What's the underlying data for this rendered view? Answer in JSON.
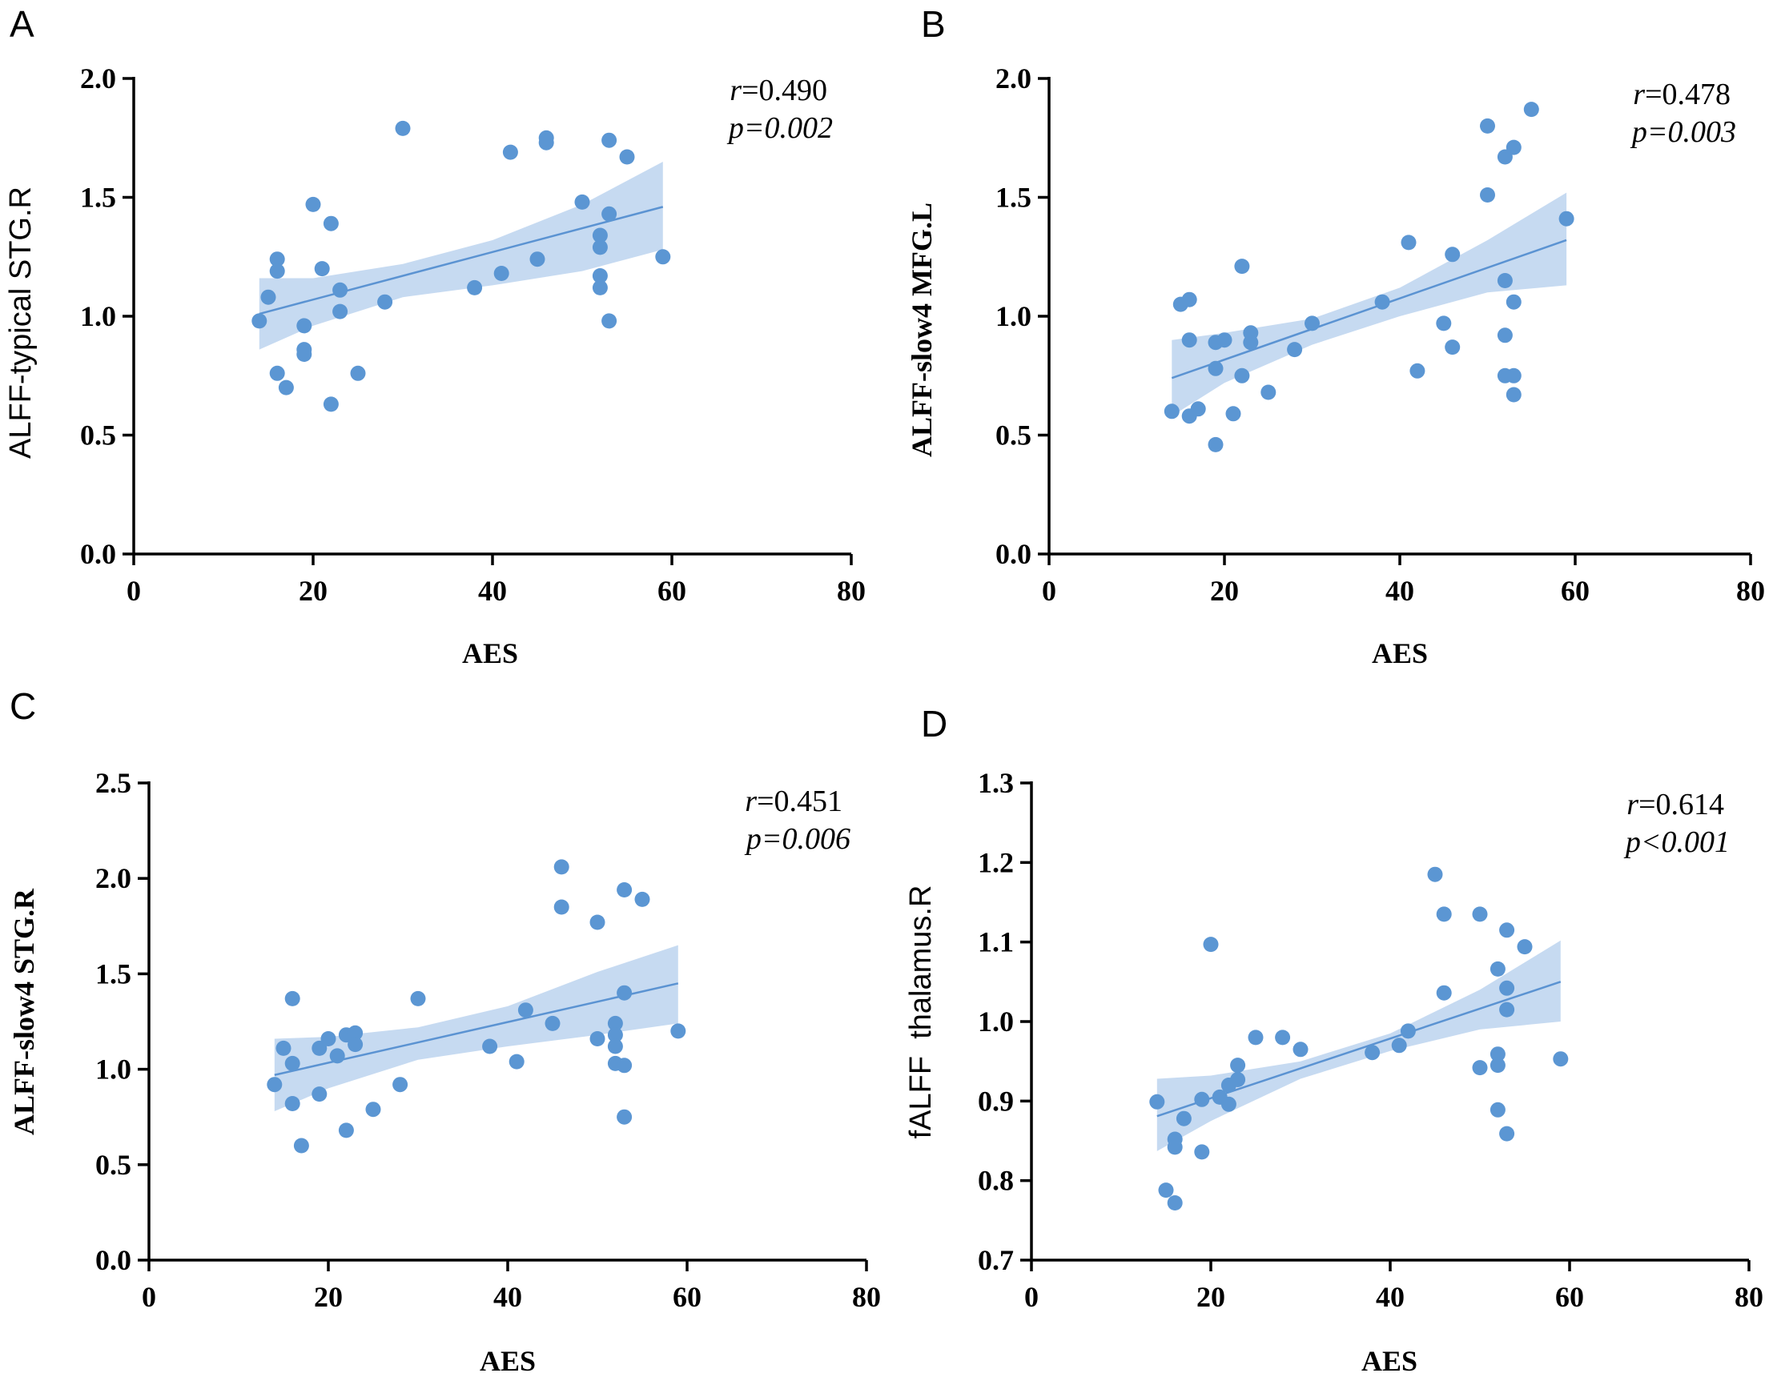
{
  "colors": {
    "points": "#5b96d3",
    "band": "#bcd4ef",
    "line": "#5b93d2",
    "axis": "#000000"
  },
  "chart_data": [
    {
      "type": "scatter",
      "panel": "A",
      "xlabel": "AES",
      "ylabel": "ALFF-typical STG.R",
      "xlim": [
        0,
        80
      ],
      "ylim": [
        0,
        2.0
      ],
      "xticks": [
        "0",
        "20",
        "40",
        "60",
        "80"
      ],
      "yticks": [
        "0.0",
        "0.5",
        "1.0",
        "1.5",
        "2.0"
      ],
      "stats": {
        "r_sym": "r",
        "r_val": "=0.490",
        "p": "p=0.002"
      },
      "fit": {
        "x0": 14,
        "y0": 1.01,
        "x1": 59,
        "y1": 1.46
      },
      "band": {
        "xs": [
          14,
          20,
          30,
          40,
          50,
          59
        ],
        "lower": [
          0.86,
          0.96,
          1.08,
          1.13,
          1.19,
          1.28
        ],
        "upper": [
          1.16,
          1.16,
          1.22,
          1.32,
          1.47,
          1.65
        ]
      },
      "points": [
        [
          14,
          0.98
        ],
        [
          15,
          1.08
        ],
        [
          16,
          1.24
        ],
        [
          16,
          1.19
        ],
        [
          16,
          0.76
        ],
        [
          17,
          0.7
        ],
        [
          19,
          0.96
        ],
        [
          19,
          0.86
        ],
        [
          19,
          0.84
        ],
        [
          20,
          1.47
        ],
        [
          21,
          1.2
        ],
        [
          22,
          1.39
        ],
        [
          22,
          0.63
        ],
        [
          23,
          1.11
        ],
        [
          23,
          1.02
        ],
        [
          25,
          0.76
        ],
        [
          28,
          1.06
        ],
        [
          30,
          1.79
        ],
        [
          38,
          1.12
        ],
        [
          41,
          1.18
        ],
        [
          42,
          1.69
        ],
        [
          45,
          1.24
        ],
        [
          46,
          1.75
        ],
        [
          46,
          1.73
        ],
        [
          50,
          1.48
        ],
        [
          52,
          1.34
        ],
        [
          52,
          1.29
        ],
        [
          52,
          1.17
        ],
        [
          52,
          1.12
        ],
        [
          53,
          1.74
        ],
        [
          53,
          1.43
        ],
        [
          53,
          0.98
        ],
        [
          55,
          1.67
        ],
        [
          59,
          1.25
        ]
      ]
    },
    {
      "type": "scatter",
      "panel": "B",
      "xlabel": "AES",
      "ylabel": "ALFF-slow4 MFG.L",
      "xlim": [
        0,
        80
      ],
      "ylim": [
        0,
        2.0
      ],
      "xticks": [
        "0",
        "20",
        "40",
        "60",
        "80"
      ],
      "yticks": [
        "0.0",
        "0.5",
        "1.0",
        "1.5",
        "2.0"
      ],
      "stats": {
        "r_sym": "r",
        "r_val": "=0.478",
        "p": "p=0.003"
      },
      "fit": {
        "x0": 14,
        "y0": 0.74,
        "x1": 59,
        "y1": 1.32
      },
      "band": {
        "xs": [
          14,
          20,
          30,
          40,
          50,
          59
        ],
        "lower": [
          0.58,
          0.72,
          0.88,
          1.0,
          1.1,
          1.13
        ],
        "upper": [
          0.9,
          0.93,
          0.99,
          1.12,
          1.32,
          1.52
        ]
      },
      "points": [
        [
          14,
          0.6
        ],
        [
          15,
          1.05
        ],
        [
          16,
          1.07
        ],
        [
          16,
          0.9
        ],
        [
          16,
          0.58
        ],
        [
          17,
          0.61
        ],
        [
          19,
          0.89
        ],
        [
          19,
          0.78
        ],
        [
          19,
          0.46
        ],
        [
          20,
          0.9
        ],
        [
          21,
          0.59
        ],
        [
          22,
          1.21
        ],
        [
          22,
          0.75
        ],
        [
          23,
          0.93
        ],
        [
          23,
          0.89
        ],
        [
          25,
          0.68
        ],
        [
          28,
          0.86
        ],
        [
          30,
          0.97
        ],
        [
          38,
          1.06
        ],
        [
          41,
          1.31
        ],
        [
          42,
          0.77
        ],
        [
          45,
          0.97
        ],
        [
          46,
          1.26
        ],
        [
          46,
          0.87
        ],
        [
          50,
          1.8
        ],
        [
          50,
          1.51
        ],
        [
          52,
          1.67
        ],
        [
          52,
          1.15
        ],
        [
          52,
          0.92
        ],
        [
          52,
          0.75
        ],
        [
          53,
          1.71
        ],
        [
          53,
          1.06
        ],
        [
          53,
          0.75
        ],
        [
          53,
          0.67
        ],
        [
          55,
          1.87
        ],
        [
          59,
          1.41
        ]
      ]
    },
    {
      "type": "scatter",
      "panel": "C",
      "xlabel": "AES",
      "ylabel": "ALFF-slow4 STG.R",
      "xlim": [
        0,
        80
      ],
      "ylim": [
        0,
        2.5
      ],
      "xticks": [
        "0",
        "20",
        "40",
        "60",
        "80"
      ],
      "yticks": [
        "0.0",
        "0.5",
        "1.0",
        "1.5",
        "2.0",
        "2.5"
      ],
      "stats": {
        "r_sym": "r",
        "r_val": "=0.451",
        "p": "p=0.006"
      },
      "fit": {
        "x0": 14,
        "y0": 0.97,
        "x1": 59,
        "y1": 1.45
      },
      "band": {
        "xs": [
          14,
          20,
          30,
          40,
          50,
          59
        ],
        "lower": [
          0.78,
          0.9,
          1.05,
          1.12,
          1.18,
          1.24
        ],
        "upper": [
          1.16,
          1.17,
          1.22,
          1.33,
          1.51,
          1.65
        ]
      },
      "points": [
        [
          14,
          0.92
        ],
        [
          15,
          1.11
        ],
        [
          16,
          1.37
        ],
        [
          16,
          1.03
        ],
        [
          16,
          0.82
        ],
        [
          17,
          0.6
        ],
        [
          19,
          1.11
        ],
        [
          19,
          0.87
        ],
        [
          20,
          1.16
        ],
        [
          21,
          1.07
        ],
        [
          22,
          1.18
        ],
        [
          22,
          0.68
        ],
        [
          23,
          1.19
        ],
        [
          23,
          1.13
        ],
        [
          25,
          0.79
        ],
        [
          28,
          0.92
        ],
        [
          30,
          1.37
        ],
        [
          38,
          1.12
        ],
        [
          41,
          1.04
        ],
        [
          42,
          1.31
        ],
        [
          45,
          1.24
        ],
        [
          46,
          2.06
        ],
        [
          46,
          1.85
        ],
        [
          50,
          1.77
        ],
        [
          50,
          1.16
        ],
        [
          52,
          1.24
        ],
        [
          52,
          1.18
        ],
        [
          52,
          1.12
        ],
        [
          52,
          1.03
        ],
        [
          53,
          1.94
        ],
        [
          53,
          1.4
        ],
        [
          53,
          1.02
        ],
        [
          53,
          0.75
        ],
        [
          55,
          1.89
        ],
        [
          59,
          1.2
        ]
      ]
    },
    {
      "type": "scatter",
      "panel": "D",
      "xlabel": "AES",
      "ylabel": "fALFF  thalamus.R",
      "xlim": [
        0,
        80
      ],
      "ylim": [
        0.7,
        1.3
      ],
      "xticks": [
        "0",
        "20",
        "40",
        "60",
        "80"
      ],
      "yticks": [
        "0.7",
        "0.8",
        "0.9",
        "1.0",
        "1.1",
        "1.2",
        "1.3"
      ],
      "stats": {
        "r_sym": "r",
        "r_val": "=0.614",
        "p": "p<0.001"
      },
      "fit": {
        "x0": 14,
        "y0": 0.881,
        "x1": 59,
        "y1": 1.05
      },
      "band": {
        "xs": [
          14,
          20,
          30,
          40,
          50,
          59
        ],
        "lower": [
          0.837,
          0.875,
          0.928,
          0.963,
          0.99,
          1.0
        ],
        "upper": [
          0.928,
          0.932,
          0.95,
          0.985,
          1.04,
          1.102
        ]
      },
      "points": [
        [
          14,
          0.899
        ],
        [
          15,
          0.788
        ],
        [
          16,
          0.852
        ],
        [
          16,
          0.842
        ],
        [
          16,
          0.772
        ],
        [
          17,
          0.878
        ],
        [
          19,
          0.902
        ],
        [
          19,
          0.836
        ],
        [
          20,
          1.097
        ],
        [
          21,
          0.905
        ],
        [
          22,
          0.92
        ],
        [
          22,
          0.896
        ],
        [
          23,
          0.945
        ],
        [
          23,
          0.927
        ],
        [
          25,
          0.98
        ],
        [
          28,
          0.98
        ],
        [
          30,
          0.965
        ],
        [
          38,
          0.961
        ],
        [
          41,
          0.97
        ],
        [
          42,
          0.988
        ],
        [
          45,
          1.185
        ],
        [
          46,
          1.135
        ],
        [
          46,
          1.036
        ],
        [
          50,
          1.135
        ],
        [
          50,
          0.942
        ],
        [
          52,
          1.066
        ],
        [
          52,
          0.959
        ],
        [
          52,
          0.945
        ],
        [
          52,
          0.889
        ],
        [
          53,
          1.115
        ],
        [
          53,
          1.042
        ],
        [
          53,
          1.015
        ],
        [
          53,
          0.859
        ],
        [
          55,
          1.094
        ],
        [
          59,
          0.953
        ]
      ]
    }
  ]
}
